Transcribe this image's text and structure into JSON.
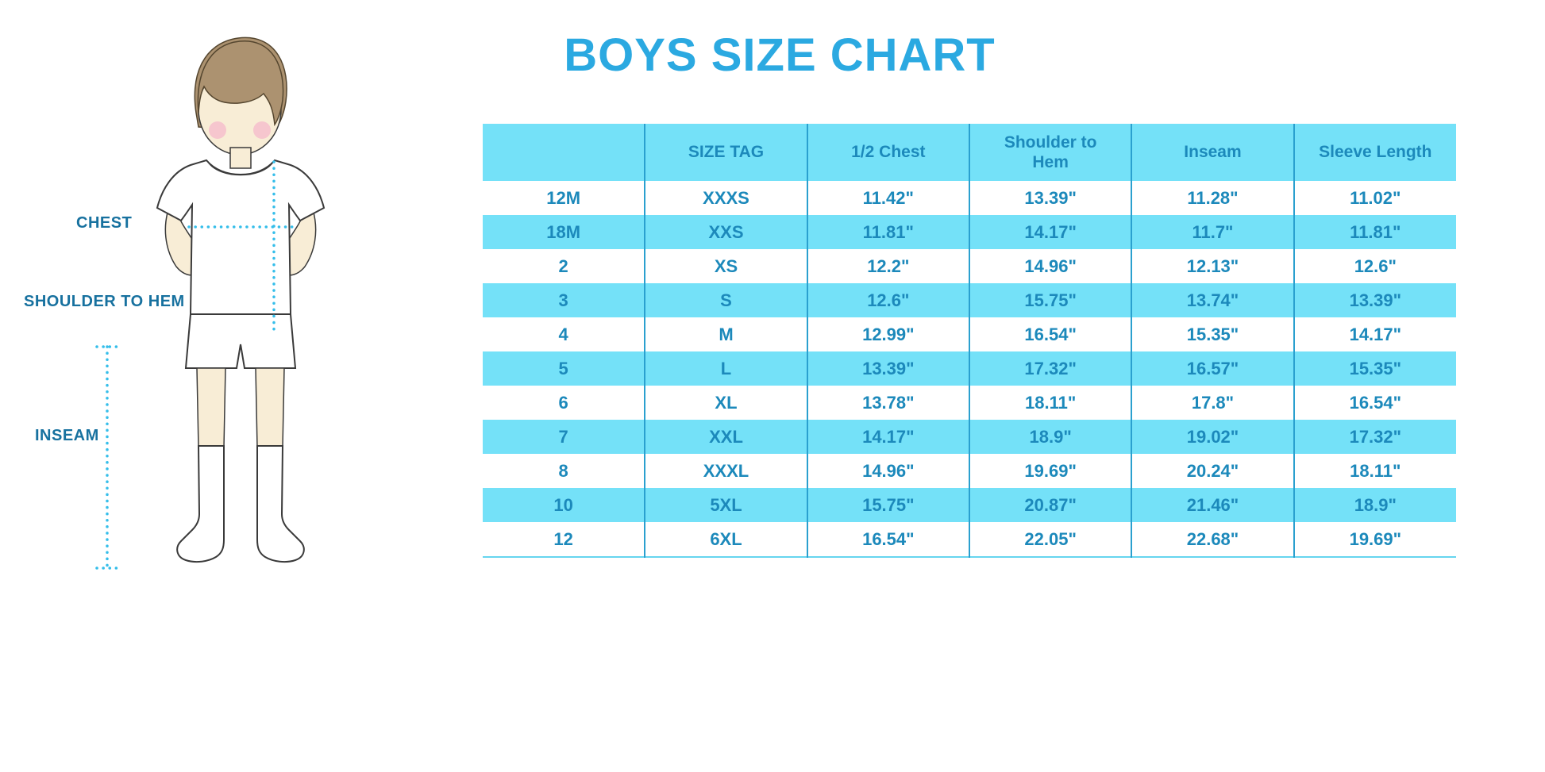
{
  "page": {
    "title": "BOYS SIZE CHART"
  },
  "figure": {
    "labels": {
      "chest": "CHEST",
      "shoulder_to_hem": "SHOULDER TO HEM",
      "inseam": "INSEAM"
    }
  },
  "chart_data": {
    "type": "table",
    "title": "BOYS SIZE CHART",
    "columns": [
      "",
      "SIZE TAG",
      "1/2 Chest",
      "Shoulder to Hem",
      "Inseam",
      "Sleeve Length"
    ],
    "rows": [
      [
        "12M",
        "XXXS",
        "11.42\"",
        "13.39\"",
        "11.28\"",
        "11.02\""
      ],
      [
        "18M",
        "XXS",
        "11.81\"",
        "14.17\"",
        "11.7\"",
        "11.81\""
      ],
      [
        "2",
        "XS",
        "12.2\"",
        "14.96\"",
        "12.13\"",
        "12.6\""
      ],
      [
        "3",
        "S",
        "12.6\"",
        "15.75\"",
        "13.74\"",
        "13.39\""
      ],
      [
        "4",
        "M",
        "12.99\"",
        "16.54\"",
        "15.35\"",
        "14.17\""
      ],
      [
        "5",
        "L",
        "13.39\"",
        "17.32\"",
        "16.57\"",
        "15.35\""
      ],
      [
        "6",
        "XL",
        "13.78\"",
        "18.11\"",
        "17.8\"",
        "16.54\""
      ],
      [
        "7",
        "XXL",
        "14.17\"",
        "18.9\"",
        "19.02\"",
        "17.32\""
      ],
      [
        "8",
        "XXXL",
        "14.96\"",
        "19.69\"",
        "20.24\"",
        "18.11\""
      ],
      [
        "10",
        "5XL",
        "15.75\"",
        "20.87\"",
        "21.46\"",
        "18.9\""
      ],
      [
        "12",
        "6XL",
        "16.54\"",
        "22.05\"",
        "22.68\"",
        "19.69\""
      ]
    ],
    "row_striping": "white / light-cyan alternating, header cyan",
    "legend_position": "none",
    "grid": "vertical column dividers only"
  },
  "colors": {
    "title": "#2BA9E1",
    "table_text": "#1C89BB",
    "row_fill": "#74E1F8",
    "divider": "#2AA0CF",
    "label_text": "#17719F",
    "dotted_line": "#35BEEA"
  }
}
